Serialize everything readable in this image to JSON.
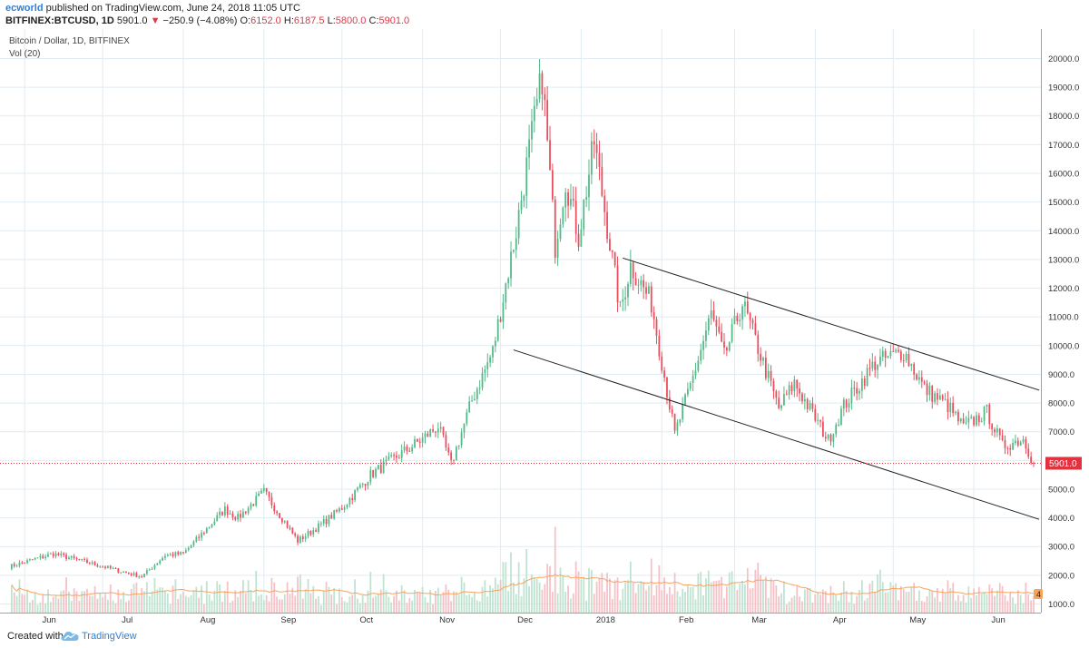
{
  "header": {
    "author": "ecworld",
    "published": "published on TradingView.com, June 24, 2018 11:05 UTC",
    "symbol": "BITFINEX:BTCUSD, 1D",
    "last": "5901.0",
    "change_arrow": "▼",
    "change": "−250.9 (−4.08%)",
    "o_label": "O:",
    "o": "6152.0",
    "h_label": "H:",
    "h": "6187.5",
    "l_label": "L:",
    "l": "5800.0",
    "c_label": "C:",
    "c": "5901.0"
  },
  "footer": {
    "created_with": "Created with",
    "brand": "TradingView"
  },
  "colors": {
    "up": "#53b987",
    "down": "#eb4d5c",
    "vol_up": "#bfe3d1",
    "vol_down": "#f6c1c6",
    "ma": "#f7a35c",
    "grid": "#e1ecf2",
    "price_line": "#e0323f"
  },
  "chart_data": {
    "type": "candlestick",
    "title": "Bitcoin / Dollar, 1D, BITFINEX",
    "volume_label": "Vol (20)",
    "x_ticks": [
      "Jun",
      "Jul",
      "Aug",
      "Sep",
      "Oct",
      "Nov",
      "Dec",
      "2018",
      "Feb",
      "Mar",
      "Apr",
      "May",
      "Jun"
    ],
    "y_ticks": [
      1000,
      2000,
      3000,
      4000,
      5000,
      6000,
      7000,
      8000,
      9000,
      10000,
      11000,
      12000,
      13000,
      14000,
      15000,
      16000,
      17000,
      18000,
      19000,
      20000
    ],
    "ylim": [
      700,
      20900
    ],
    "date_range": [
      "2017-05-26",
      "2018-06-24"
    ],
    "last_price_label": "5901.0",
    "last_price": 5901,
    "volume_badge": "4",
    "price_path": [
      [
        "2017-05-26",
        2300
      ],
      [
        "2017-06-12",
        2750
      ],
      [
        "2017-06-25",
        2450
      ],
      [
        "2017-07-16",
        1950
      ],
      [
        "2017-07-25",
        2700
      ],
      [
        "2017-08-01",
        2750
      ],
      [
        "2017-08-17",
        4300
      ],
      [
        "2017-08-22",
        4000
      ],
      [
        "2017-09-01",
        4900
      ],
      [
        "2017-09-14",
        3200
      ],
      [
        "2017-09-22",
        3700
      ],
      [
        "2017-10-01",
        4350
      ],
      [
        "2017-10-12",
        5500
      ],
      [
        "2017-10-20",
        6000
      ],
      [
        "2017-11-01",
        6750
      ],
      [
        "2017-11-07",
        7200
      ],
      [
        "2017-11-12",
        5850
      ],
      [
        "2017-11-20",
        8100
      ],
      [
        "2017-11-28",
        9800
      ],
      [
        "2017-12-07",
        14000
      ],
      [
        "2017-12-12",
        16800
      ],
      [
        "2017-12-17",
        19400
      ],
      [
        "2017-12-22",
        13500
      ],
      [
        "2017-12-26",
        15800
      ],
      [
        "2017-12-31",
        13800
      ],
      [
        "2018-01-06",
        17100
      ],
      [
        "2018-01-16",
        11200
      ],
      [
        "2018-01-20",
        12800
      ],
      [
        "2018-01-28",
        11500
      ],
      [
        "2018-02-06",
        6900
      ],
      [
        "2018-02-12",
        8600
      ],
      [
        "2018-02-20",
        11100
      ],
      [
        "2018-02-25",
        9600
      ],
      [
        "2018-03-04",
        11500
      ],
      [
        "2018-03-18",
        7800
      ],
      [
        "2018-03-24",
        8700
      ],
      [
        "2018-04-06",
        6700
      ],
      [
        "2018-04-12",
        7900
      ],
      [
        "2018-04-24",
        9400
      ],
      [
        "2018-05-05",
        9800
      ],
      [
        "2018-05-13",
        8500
      ],
      [
        "2018-05-22",
        7900
      ],
      [
        "2018-05-28",
        7150
      ],
      [
        "2018-06-06",
        7700
      ],
      [
        "2018-06-12",
        6500
      ],
      [
        "2018-06-20",
        6750
      ],
      [
        "2018-06-24",
        5901
      ]
    ],
    "trendlines": [
      {
        "from": [
          "2018-01-17",
          13050
        ],
        "to": [
          "2018-06-24",
          8450
        ]
      },
      {
        "from": [
          "2017-12-06",
          9850
        ],
        "to": [
          "2018-06-24",
          3950
        ]
      }
    ]
  }
}
